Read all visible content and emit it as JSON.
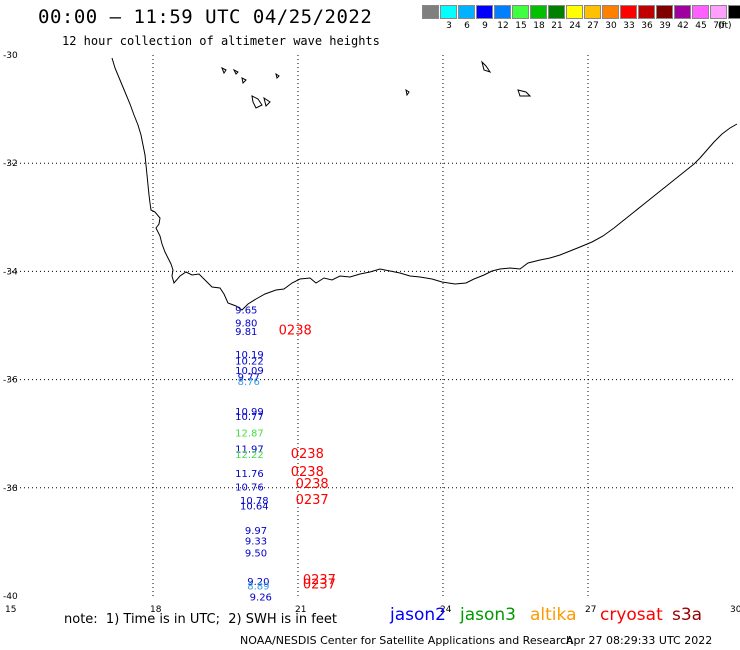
{
  "header": {
    "title": "00:00 – 11:59 UTC 04/25/2022",
    "subtitle": "12 hour collection of altimeter wave heights"
  },
  "legend": {
    "colors": [
      "#7f7f7f",
      "#00ffff",
      "#00b2ff",
      "#0000ff",
      "#0080ff",
      "#40ff40",
      "#00c000",
      "#008000",
      "#ffff00",
      "#ffc000",
      "#ff8000",
      "#ff0000",
      "#c00000",
      "#800000",
      "#a000a0",
      "#ff60ff",
      "#ffa0ff",
      "#000000"
    ],
    "labels": [
      "",
      "3",
      "6",
      "9",
      "12",
      "15",
      "18",
      "21",
      "24",
      "27",
      "30",
      "33",
      "36",
      "39",
      "42",
      "45",
      "70"
    ],
    "unit": "(ft)"
  },
  "axes": {
    "lat_labels": [
      "-30",
      "-32",
      "-34",
      "-36",
      "-38",
      "-40"
    ],
    "lon_labels": [
      "15",
      "18",
      "21",
      "24",
      "27",
      "30"
    ]
  },
  "observations": [
    {
      "text": "9.65",
      "color": "#0000cc",
      "lon": 19.7,
      "lat": -34.78
    },
    {
      "text": "9.80",
      "color": "#0000cc",
      "lon": 19.7,
      "lat": -35.02
    },
    {
      "text": "9.81",
      "color": "#0000cc",
      "lon": 19.7,
      "lat": -35.18
    },
    {
      "text": "10.19",
      "color": "#0000cc",
      "lon": 19.7,
      "lat": -35.6
    },
    {
      "text": "10.22",
      "color": "#0000cc",
      "lon": 19.7,
      "lat": -35.72
    },
    {
      "text": "10.09",
      "color": "#0000cc",
      "lon": 19.7,
      "lat": -35.9
    },
    {
      "text": "9.77",
      "color": "#0000cc",
      "lon": 19.75,
      "lat": -36.02
    },
    {
      "text": "8.76",
      "color": "#33a0e0",
      "lon": 19.75,
      "lat": -36.1
    },
    {
      "text": "10.99",
      "color": "#0000cc",
      "lon": 19.7,
      "lat": -36.65
    },
    {
      "text": "10.77",
      "color": "#0000cc",
      "lon": 19.7,
      "lat": -36.75
    },
    {
      "text": "12.87",
      "color": "#44dd44",
      "lon": 19.7,
      "lat": -37.05
    },
    {
      "text": "11.97",
      "color": "#0000cc",
      "lon": 19.7,
      "lat": -37.35
    },
    {
      "text": "12.22",
      "color": "#44dd44",
      "lon": 19.7,
      "lat": -37.45
    },
    {
      "text": "11.76",
      "color": "#0000cc",
      "lon": 19.7,
      "lat": -37.8
    },
    {
      "text": "10.76",
      "color": "#0000cc",
      "lon": 19.7,
      "lat": -38.05
    },
    {
      "text": "10.78",
      "color": "#0000cc",
      "lon": 19.8,
      "lat": -38.3
    },
    {
      "text": "10.64",
      "color": "#0000cc",
      "lon": 19.8,
      "lat": -38.4
    },
    {
      "text": "9.97",
      "color": "#0000cc",
      "lon": 19.9,
      "lat": -38.85
    },
    {
      "text": "9.33",
      "color": "#0000cc",
      "lon": 19.9,
      "lat": -39.05
    },
    {
      "text": "9.50",
      "color": "#0000cc",
      "lon": 19.9,
      "lat": -39.27
    },
    {
      "text": "9.20",
      "color": "#0000cc",
      "lon": 19.95,
      "lat": -39.8
    },
    {
      "text": "8.89",
      "color": "#33a0e0",
      "lon": 19.95,
      "lat": -39.88
    },
    {
      "text": "9.26",
      "color": "#0000cc",
      "lon": 20.0,
      "lat": -40.08
    },
    {
      "text": "0238",
      "color": "#ff0000",
      "lon": 20.6,
      "lat": -35.17,
      "big": true
    },
    {
      "text": "0238",
      "color": "#ff0000",
      "lon": 20.85,
      "lat": -37.45,
      "big": true
    },
    {
      "text": "0238",
      "color": "#ff0000",
      "lon": 20.85,
      "lat": -37.78,
      "big": true
    },
    {
      "text": "0238",
      "color": "#ff0000",
      "lon": 20.95,
      "lat": -38.0,
      "big": true
    },
    {
      "text": "0237",
      "color": "#ff0000",
      "lon": 20.95,
      "lat": -38.3,
      "big": true
    },
    {
      "text": "0237",
      "color": "#ff0000",
      "lon": 21.1,
      "lat": -39.78,
      "big": true
    },
    {
      "text": "0237",
      "color": "#ff0000",
      "lon": 21.1,
      "lat": -39.86,
      "big": true
    }
  ],
  "footer": {
    "note": "note:  1) Time is in UTC;  2) SWH is in feet",
    "satellites": [
      {
        "name": "jason2",
        "color": "#0000ff"
      },
      {
        "name": "jason3",
        "color": "#009900"
      },
      {
        "name": "altika",
        "color": "#ff9900"
      },
      {
        "name": "cryosat",
        "color": "#ff0000"
      },
      {
        "name": "s3a",
        "color": "#990000"
      }
    ],
    "credit": "NOAA/NESDIS Center for Satellite Applications and Research",
    "timestamp": "Apr 27 08:29:33 UTC 2022"
  }
}
